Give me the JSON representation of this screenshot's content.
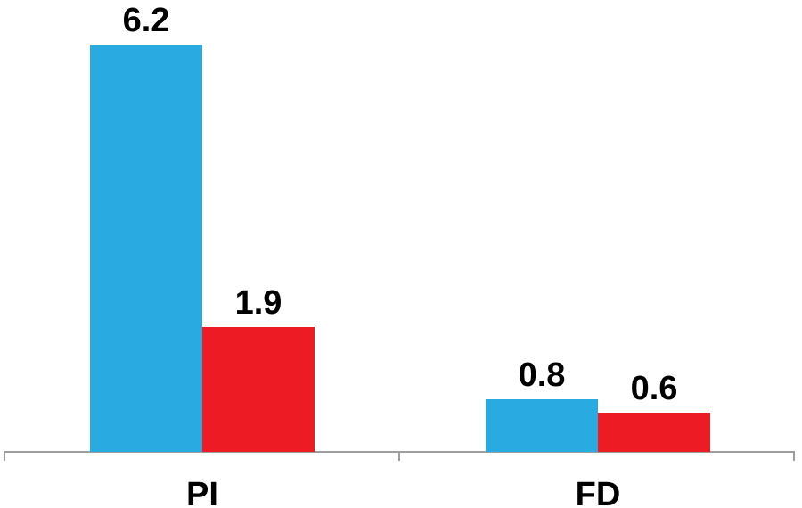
{
  "chart_data": {
    "type": "bar",
    "categories": [
      "PI",
      "FD"
    ],
    "series": [
      {
        "name": "blue",
        "color": "#29ABE2",
        "values": [
          6.2,
          0.8
        ],
        "labels": [
          "6.2",
          "0.8"
        ]
      },
      {
        "name": "red",
        "color": "#ED1C24",
        "values": [
          1.9,
          0.6
        ],
        "labels": [
          "1.9",
          "0.6"
        ]
      }
    ],
    "title": "",
    "xlabel": "",
    "ylabel": "",
    "ylim": [
      0,
      6.8
    ],
    "grid": false,
    "legend": "none",
    "value_labels_shown": true,
    "axis_color": "#9E9E9E",
    "text_color": "#000000",
    "background_color": "#FFFFFF"
  }
}
